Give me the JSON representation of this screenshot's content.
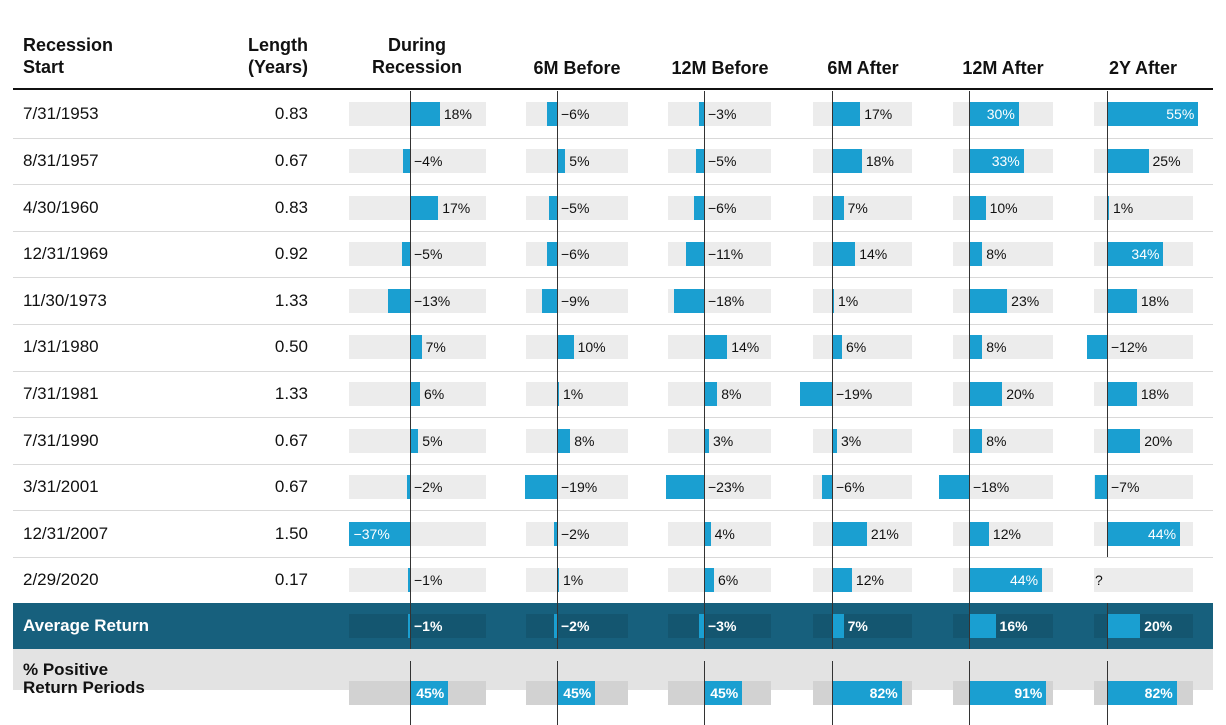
{
  "headers": {
    "start": [
      "Recession",
      "Start"
    ],
    "length": [
      "Length",
      "(Years)"
    ],
    "during": [
      "During",
      "Recession"
    ],
    "m6_before": "6M Before",
    "m12_before": "12M Before",
    "m6_after": "6M After",
    "m12_after": "12M After",
    "y2_after": "2Y After"
  },
  "chart_data": {
    "type": "table",
    "columns": [
      "During Recession",
      "6M Before",
      "12M Before",
      "6M After",
      "12M After",
      "2Y After"
    ],
    "rows": [
      {
        "start": "7/31/1953",
        "length": "0.83",
        "values": [
          18,
          -6,
          -3,
          17,
          30,
          55
        ],
        "labels": [
          "18%",
          "−6%",
          "−3%",
          "17%",
          "30%",
          "55%"
        ]
      },
      {
        "start": "8/31/1957",
        "length": "0.67",
        "values": [
          -4,
          5,
          -5,
          18,
          33,
          25
        ],
        "labels": [
          "−4%",
          "5%",
          "−5%",
          "18%",
          "33%",
          "25%"
        ]
      },
      {
        "start": "4/30/1960",
        "length": "0.83",
        "values": [
          17,
          -5,
          -6,
          7,
          10,
          1
        ],
        "labels": [
          "17%",
          "−5%",
          "−6%",
          "7%",
          "10%",
          "1%"
        ]
      },
      {
        "start": "12/31/1969",
        "length": "0.92",
        "values": [
          -5,
          -6,
          -11,
          14,
          8,
          34
        ],
        "labels": [
          "−5%",
          "−6%",
          "−11%",
          "14%",
          "8%",
          "34%"
        ]
      },
      {
        "start": "11/30/1973",
        "length": "1.33",
        "values": [
          -13,
          -9,
          -18,
          1,
          23,
          18
        ],
        "labels": [
          "−13%",
          "−9%",
          "−18%",
          "1%",
          "23%",
          "18%"
        ]
      },
      {
        "start": "1/31/1980",
        "length": "0.50",
        "values": [
          7,
          10,
          14,
          6,
          8,
          -12
        ],
        "labels": [
          "7%",
          "10%",
          "14%",
          "6%",
          "8%",
          "−12%"
        ]
      },
      {
        "start": "7/31/1981",
        "length": "1.33",
        "values": [
          6,
          1,
          8,
          -19,
          20,
          18
        ],
        "labels": [
          "6%",
          "1%",
          "8%",
          "−19%",
          "20%",
          "18%"
        ]
      },
      {
        "start": "7/31/1990",
        "length": "0.67",
        "values": [
          5,
          8,
          3,
          3,
          8,
          20
        ],
        "labels": [
          "5%",
          "8%",
          "3%",
          "3%",
          "8%",
          "20%"
        ]
      },
      {
        "start": "3/31/2001",
        "length": "0.67",
        "values": [
          -2,
          -19,
          -23,
          -6,
          -18,
          -7
        ],
        "labels": [
          "−2%",
          "−19%",
          "−23%",
          "−6%",
          "−18%",
          "−7%"
        ]
      },
      {
        "start": "12/31/2007",
        "length": "1.50",
        "values": [
          -37,
          -2,
          4,
          21,
          12,
          44
        ],
        "labels": [
          "−37%",
          "−2%",
          "4%",
          "21%",
          "12%",
          "44%"
        ]
      },
      {
        "start": "2/29/2020",
        "length": "0.17",
        "values": [
          -1,
          1,
          6,
          12,
          44,
          null
        ],
        "labels": [
          "−1%",
          "1%",
          "6%",
          "12%",
          "44%",
          "?"
        ]
      }
    ],
    "average": {
      "label": "Average Return",
      "values": [
        -1,
        -2,
        -3,
        7,
        16,
        20
      ],
      "labels": [
        "−1%",
        "−2%",
        "−3%",
        "7%",
        "16%",
        "20%"
      ]
    },
    "positive": {
      "label": [
        "% Positive",
        "Return Periods"
      ],
      "values": [
        45,
        45,
        45,
        82,
        91,
        82
      ],
      "labels": [
        "45%",
        "45%",
        "45%",
        "82%",
        "91%",
        "82%"
      ]
    }
  },
  "colors": {
    "bar": "#1a9fd1",
    "track": "#ececec",
    "average_band": "#17607d",
    "positive_band": "#e3e3e3",
    "axis": "#333333"
  }
}
